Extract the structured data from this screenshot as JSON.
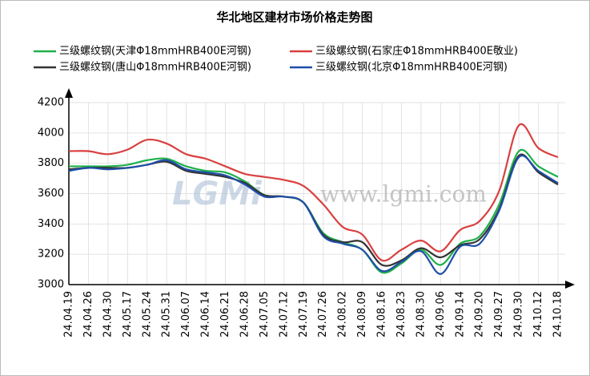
{
  "chart_data": {
    "type": "line",
    "title": "华北地区建材市场价格走势图",
    "watermark": "www.lgmi.com",
    "logo": "LGMi",
    "categories": [
      "24.04.19",
      "24.04.26",
      "24.04.30",
      "24.05.17",
      "24.05.24",
      "24.05.31",
      "24.06.07",
      "24.06.14",
      "24.06.21",
      "24.06.28",
      "24.07.05",
      "24.07.12",
      "24.07.19",
      "24.07.26",
      "24.08.02",
      "24.08.09",
      "24.08.16",
      "24.08.23",
      "24.08.30",
      "24.09.06",
      "24.09.14",
      "24.09.20",
      "24.09.27",
      "24.09.30",
      "24.10.12",
      "24.10.18"
    ],
    "series": [
      {
        "name": "三级螺纹钢(天津Φ18mmHRB400E河钢)",
        "color": "#1fb04a",
        "values": [
          3780,
          3780,
          3780,
          3790,
          3820,
          3830,
          3780,
          3750,
          3740,
          3680,
          3590,
          3580,
          3540,
          3340,
          3280,
          3230,
          3080,
          3140,
          3230,
          3130,
          3270,
          3320,
          3530,
          3880,
          3780,
          3710
        ]
      },
      {
        "name": "三级螺纹钢(石家庄Φ18mmHRB400E敬业)",
        "color": "#d94040",
        "values": [
          3880,
          3880,
          3860,
          3890,
          3955,
          3930,
          3860,
          3830,
          3780,
          3730,
          3710,
          3690,
          3650,
          3530,
          3380,
          3330,
          3160,
          3230,
          3290,
          3220,
          3360,
          3420,
          3620,
          4050,
          3900,
          3840
        ]
      },
      {
        "name": "三级螺纹钢(唐山Φ18mmHRB400E河钢)",
        "color": "#333333",
        "values": [
          3760,
          3770,
          3770,
          3770,
          3790,
          3810,
          3750,
          3730,
          3710,
          3670,
          3590,
          3580,
          3540,
          3330,
          3280,
          3280,
          3130,
          3160,
          3240,
          3180,
          3260,
          3300,
          3500,
          3850,
          3740,
          3660
        ]
      },
      {
        "name": "三级螺纹钢(北京Φ18mmHRB400E河钢)",
        "color": "#1f4fa8",
        "values": [
          3750,
          3770,
          3760,
          3770,
          3790,
          3820,
          3760,
          3740,
          3720,
          3660,
          3580,
          3580,
          3540,
          3320,
          3270,
          3230,
          3090,
          3150,
          3220,
          3070,
          3250,
          3270,
          3490,
          3840,
          3750,
          3670
        ]
      }
    ],
    "ylim": [
      3000,
      4200
    ],
    "yticks": [
      3000,
      3200,
      3400,
      3600,
      3800,
      4000,
      4200
    ],
    "grid": true
  }
}
